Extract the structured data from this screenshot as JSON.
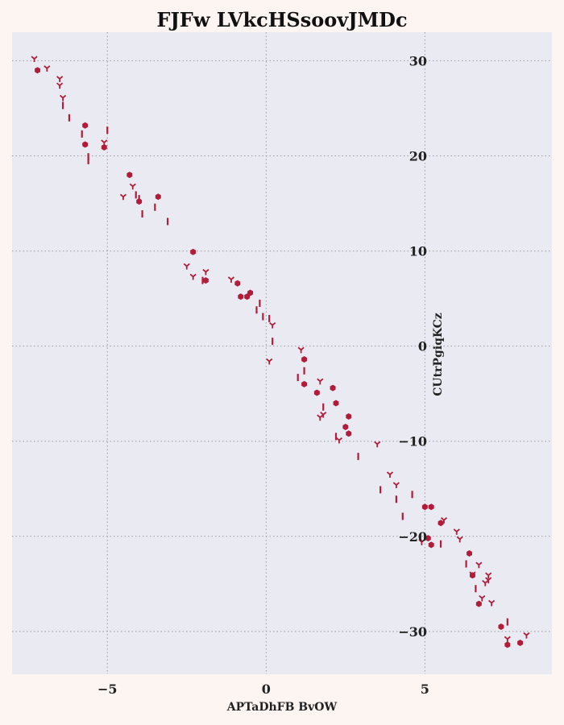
{
  "chart_data": {
    "type": "scatter",
    "title": "FJFw LVkcHSsoovJMDc",
    "xlabel": "APTaDhFB BvOW",
    "ylabel": "CUtrPgiqKCz",
    "xlim": [
      -8.0,
      9.0
    ],
    "ylim": [
      -34.5,
      33.0
    ],
    "xticks": [
      -5,
      0,
      5
    ],
    "yticks": [
      30,
      20,
      10,
      0,
      -10,
      -20,
      -30
    ],
    "grid": true,
    "colors": {
      "marker": "#b01c3a",
      "plot_background": "#eaeaf2",
      "figure_background": "#fdf5f2"
    },
    "series": [
      {
        "marker": "hexagon",
        "points": [
          [
            -7.2,
            29.0
          ],
          [
            -5.7,
            23.2
          ],
          [
            -5.7,
            21.2
          ],
          [
            -5.1,
            20.9
          ],
          [
            -4.3,
            18.0
          ],
          [
            -4.0,
            15.2
          ],
          [
            -3.4,
            15.7
          ],
          [
            -2.3,
            9.9
          ],
          [
            -1.9,
            6.9
          ],
          [
            -0.9,
            6.6
          ],
          [
            -0.8,
            5.2
          ],
          [
            -0.6,
            5.2
          ],
          [
            -0.5,
            5.6
          ],
          [
            1.2,
            -1.4
          ],
          [
            1.2,
            -4.0
          ],
          [
            1.6,
            -4.9
          ],
          [
            2.1,
            -4.4
          ],
          [
            2.2,
            -6.0
          ],
          [
            2.5,
            -8.5
          ],
          [
            2.6,
            -7.4
          ],
          [
            2.6,
            -9.2
          ],
          [
            5.0,
            -16.9
          ],
          [
            5.2,
            -16.9
          ],
          [
            5.1,
            -20.2
          ],
          [
            5.2,
            -20.9
          ],
          [
            5.5,
            -18.6
          ],
          [
            6.4,
            -21.8
          ],
          [
            6.5,
            -24.1
          ],
          [
            6.7,
            -27.1
          ],
          [
            7.4,
            -29.5
          ],
          [
            7.6,
            -31.4
          ],
          [
            8.0,
            -31.2
          ]
        ]
      },
      {
        "marker": "tri_down",
        "points": [
          [
            -7.3,
            30.2
          ],
          [
            -6.9,
            29.2
          ],
          [
            -6.5,
            28.1
          ],
          [
            -6.5,
            27.4
          ],
          [
            -6.4,
            26.1
          ],
          [
            -5.1,
            21.4
          ],
          [
            -4.5,
            15.7
          ],
          [
            -4.2,
            16.8
          ],
          [
            -2.5,
            8.4
          ],
          [
            -2.3,
            7.3
          ],
          [
            -1.9,
            7.8
          ],
          [
            -1.1,
            7.0
          ],
          [
            0.1,
            -1.6
          ],
          [
            0.2,
            2.2
          ],
          [
            1.1,
            -0.4
          ],
          [
            1.7,
            -3.7
          ],
          [
            1.7,
            -7.5
          ],
          [
            1.8,
            -7.2
          ],
          [
            2.3,
            -9.9
          ],
          [
            3.5,
            -10.3
          ],
          [
            3.9,
            -13.5
          ],
          [
            4.1,
            -14.6
          ],
          [
            4.9,
            -20.6
          ],
          [
            5.6,
            -18.3
          ],
          [
            6.0,
            -19.5
          ],
          [
            6.1,
            -20.3
          ],
          [
            6.5,
            -24.0
          ],
          [
            6.7,
            -23.0
          ],
          [
            6.8,
            -26.5
          ],
          [
            6.9,
            -24.9
          ],
          [
            7.0,
            -24.1
          ],
          [
            7.0,
            -24.6
          ],
          [
            7.1,
            -27.0
          ],
          [
            7.6,
            -30.8
          ],
          [
            8.2,
            -30.4
          ]
        ]
      },
      {
        "marker": "vline",
        "points": [
          [
            -6.4,
            25.3
          ],
          [
            -6.2,
            24.0
          ],
          [
            -5.8,
            22.3
          ],
          [
            -5.6,
            19.9
          ],
          [
            -5.6,
            19.5
          ],
          [
            -5.0,
            22.7
          ],
          [
            -4.1,
            15.9
          ],
          [
            -4.0,
            15.5
          ],
          [
            -3.9,
            13.9
          ],
          [
            -3.5,
            14.6
          ],
          [
            -3.1,
            13.1
          ],
          [
            -2.0,
            6.9
          ],
          [
            -0.3,
            3.8
          ],
          [
            -0.2,
            4.5
          ],
          [
            -0.1,
            3.1
          ],
          [
            0.1,
            2.9
          ],
          [
            0.2,
            0.5
          ],
          [
            1.0,
            -3.3
          ],
          [
            1.2,
            -2.6
          ],
          [
            1.8,
            -6.4
          ],
          [
            2.2,
            -9.5
          ],
          [
            2.9,
            -11.6
          ],
          [
            3.6,
            -15.1
          ],
          [
            4.1,
            -16.1
          ],
          [
            4.3,
            -17.9
          ],
          [
            4.6,
            -15.6
          ],
          [
            5.5,
            -20.8
          ],
          [
            6.3,
            -22.9
          ],
          [
            6.6,
            -25.5
          ],
          [
            7.6,
            -29.0
          ]
        ]
      }
    ]
  }
}
